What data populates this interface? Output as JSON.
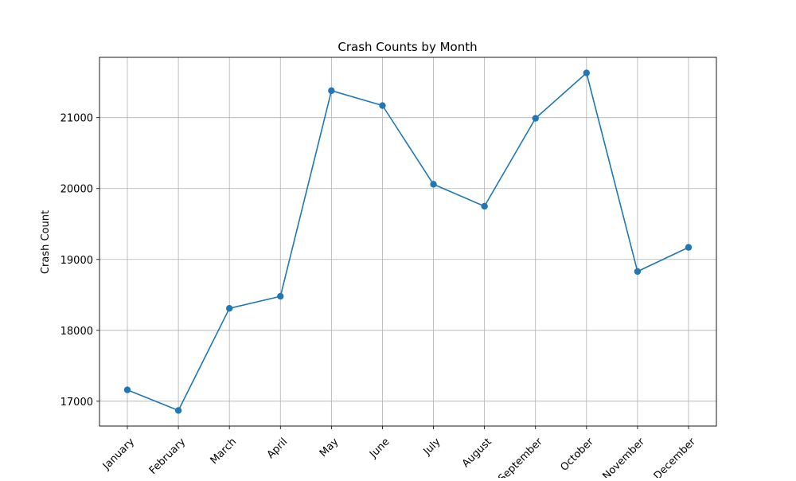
{
  "chart_data": {
    "type": "line",
    "title": "Crash Counts by Month",
    "xlabel": "",
    "ylabel": "Crash Count",
    "categories": [
      "January",
      "February",
      "March",
      "April",
      "May",
      "June",
      "July",
      "August",
      "September",
      "October",
      "November",
      "December"
    ],
    "series": [
      {
        "values": [
          17160,
          16870,
          18310,
          18480,
          21380,
          21170,
          20060,
          19750,
          20990,
          21630,
          18830,
          19170
        ],
        "color": "#1f77b4",
        "marker": "circle"
      }
    ],
    "yticks": [
      17000,
      18000,
      19000,
      20000,
      21000
    ],
    "ytick_labels": [
      "17000",
      "18000",
      "19000",
      "20000",
      "21000"
    ],
    "ylim": [
      16650,
      21850
    ],
    "grid": true,
    "legend": "none"
  }
}
